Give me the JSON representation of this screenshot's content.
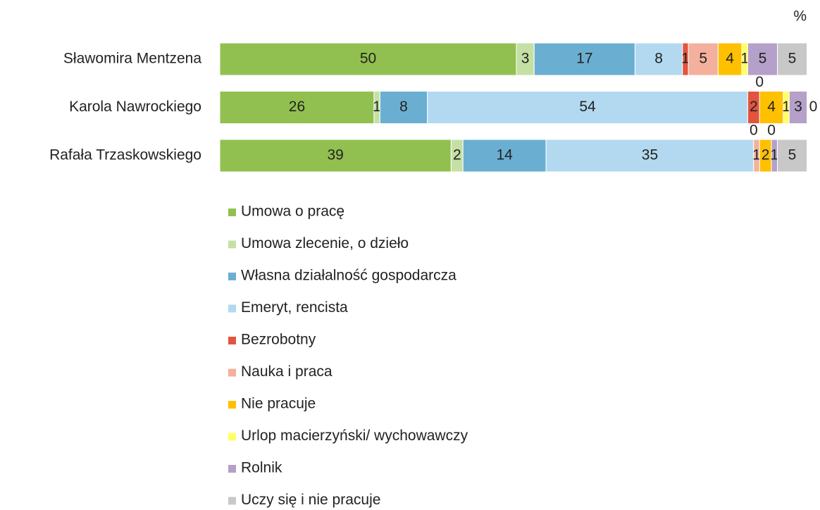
{
  "chart_data": {
    "type": "bar",
    "orientation": "horizontal",
    "stacked": true,
    "unit": "%",
    "categories": [
      "Sławomira Mentzena",
      "Karola Nawrockiego",
      "Rafała Trzaskowskiego"
    ],
    "xlim": [
      0,
      100
    ],
    "series": [
      {
        "name": "Umowa o pracę",
        "color": "#92c050",
        "values": [
          50,
          26,
          39
        ]
      },
      {
        "name": "Umowa zlecenie, o dzieło",
        "color": "#c5e0a5",
        "values": [
          3,
          1,
          2
        ]
      },
      {
        "name": "Własna działalność gospodarcza",
        "color": "#6aafd2",
        "values": [
          17,
          8,
          14
        ]
      },
      {
        "name": "Emeryt, rencista",
        "color": "#b3d9f0",
        "values": [
          8,
          54,
          35
        ]
      },
      {
        "name": "Bezrobotny",
        "color": "#e2543e",
        "values": [
          1,
          2,
          0
        ]
      },
      {
        "name": "Nauka i praca",
        "color": "#f4b09c",
        "values": [
          5,
          0,
          1
        ]
      },
      {
        "name": "Nie pracuje",
        "color": "#ffc000",
        "values": [
          4,
          4,
          2
        ]
      },
      {
        "name": "Urlop macierzyński/ wychowawczy",
        "color": "#ffff66",
        "values": [
          1,
          1,
          0
        ]
      },
      {
        "name": "Rolnik",
        "color": "#b4a0c8",
        "values": [
          5,
          3,
          1
        ]
      },
      {
        "name": "Uczy się i nie pracuje",
        "color": "#c8c8c8",
        "values": [
          5,
          0,
          5
        ]
      }
    ],
    "legend": "bottom"
  }
}
